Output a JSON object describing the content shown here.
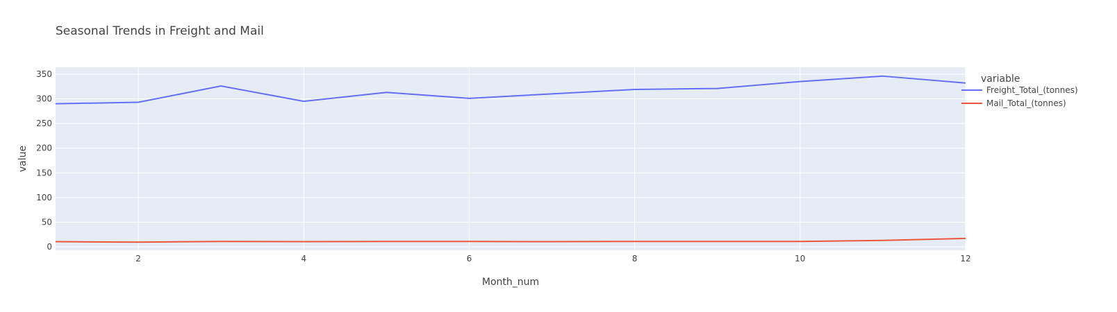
{
  "chart_data": {
    "type": "line",
    "title": "Seasonal Trends in Freight and Mail",
    "xlabel": "Month_num",
    "ylabel": "value",
    "xlim": [
      1,
      12
    ],
    "ylim": [
      -7,
      364
    ],
    "xticks": [
      2,
      4,
      6,
      8,
      10,
      12
    ],
    "yticks": [
      0,
      50,
      100,
      150,
      200,
      250,
      300,
      350
    ],
    "grid": true,
    "legend_title": "variable",
    "legend_position": "top-right outside",
    "x": [
      1,
      2,
      3,
      4,
      5,
      6,
      7,
      8,
      9,
      10,
      11,
      12
    ],
    "series": [
      {
        "name": "Freight_Total_(tonnes)",
        "color": "#636efa",
        "values": [
          290,
          293,
          326,
          295,
          313,
          301,
          310,
          319,
          321,
          335,
          346,
          332
        ]
      },
      {
        "name": "Mail_Total_(tonnes)",
        "color": "#ef553b",
        "values": [
          10.5,
          9.5,
          11,
          10.5,
          11,
          11,
          10.5,
          11,
          11,
          11,
          13,
          17
        ]
      }
    ]
  },
  "colors": {
    "plot_background": "#e5ecf6",
    "grid": "#ffffff"
  }
}
